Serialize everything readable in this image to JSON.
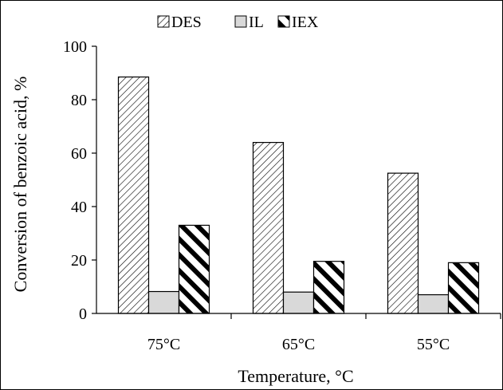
{
  "chart_data": {
    "type": "bar",
    "xlabel": "Temperature, °C",
    "ylabel": "Conversion of benzoic acid, %",
    "categories": [
      "75°C",
      "65°C",
      "55°C"
    ],
    "series": [
      {
        "name": "DES",
        "values": [
          88.5,
          64.0,
          52.5
        ],
        "pattern": "diagonal-fine"
      },
      {
        "name": "IL",
        "values": [
          8.2,
          8.0,
          7.0
        ],
        "pattern": "solid",
        "color": "#d9d9d9"
      },
      {
        "name": "IEX",
        "values": [
          33.0,
          19.5,
          19.0
        ],
        "pattern": "diagonal-thick"
      }
    ],
    "ylim": [
      0,
      100
    ],
    "yticks": [
      0,
      20,
      40,
      60,
      80,
      100
    ],
    "grid": false,
    "legend_position": "top-center"
  }
}
